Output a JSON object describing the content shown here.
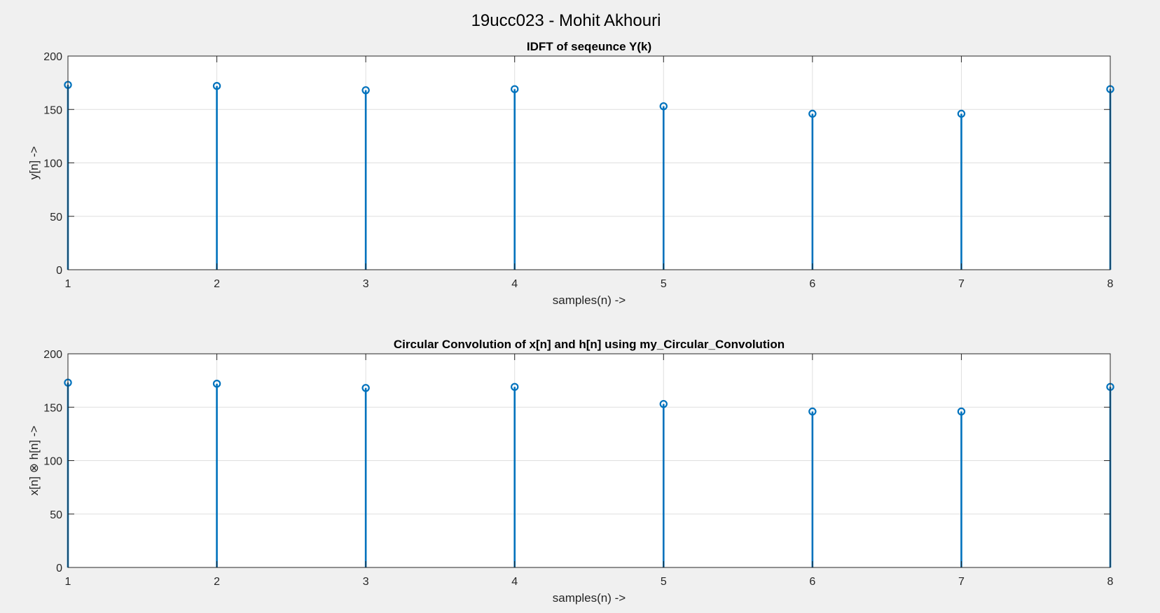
{
  "figure_title": "19ucc023 - Mohit Akhouri",
  "colors": {
    "stem": "#0072BD",
    "axes_bg": "#ffffff",
    "figure_bg": "#f0f0f0",
    "grid": "#dfdfdf"
  },
  "chart_data": [
    {
      "type": "stem",
      "title": "IDFT of seqeunce Y(k)",
      "xlabel": "samples(n) ->",
      "ylabel": "y[n] ->",
      "x": [
        1,
        2,
        3,
        4,
        5,
        6,
        7,
        8
      ],
      "values": [
        173,
        172,
        168,
        169,
        153,
        146,
        146,
        169
      ],
      "xlim": [
        1,
        8
      ],
      "ylim": [
        0,
        200
      ],
      "xticks": [
        "1",
        "2",
        "3",
        "4",
        "5",
        "6",
        "7",
        "8"
      ],
      "yticks": [
        "0",
        "50",
        "100",
        "150",
        "200"
      ],
      "grid": true
    },
    {
      "type": "stem",
      "title": "Circular Convolution of x[n] and h[n] using my_Circular_Convolution",
      "xlabel": "samples(n) ->",
      "ylabel": "x[n] ⊗ h[n] ->",
      "x": [
        1,
        2,
        3,
        4,
        5,
        6,
        7,
        8
      ],
      "values": [
        173,
        172,
        168,
        169,
        153,
        146,
        146,
        169
      ],
      "xlim": [
        1,
        8
      ],
      "ylim": [
        0,
        200
      ],
      "xticks": [
        "1",
        "2",
        "3",
        "4",
        "5",
        "6",
        "7",
        "8"
      ],
      "yticks": [
        "0",
        "50",
        "100",
        "150",
        "200"
      ],
      "grid": true
    }
  ]
}
